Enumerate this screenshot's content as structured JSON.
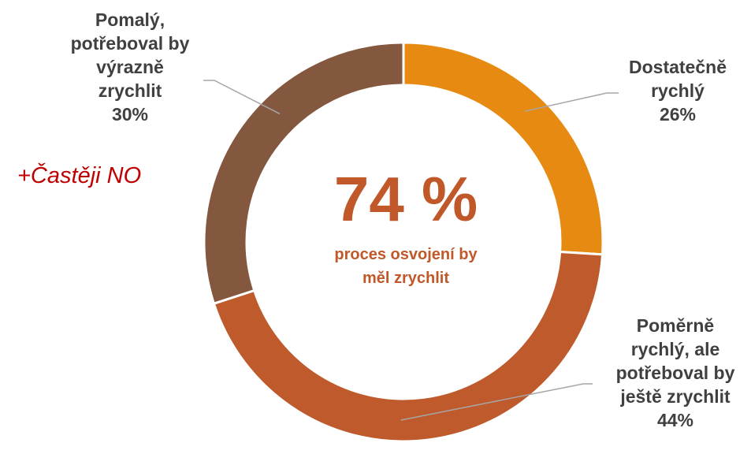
{
  "chart_data": {
    "type": "pie",
    "variant": "donut",
    "categories": [
      "Dostatečně rychlý",
      "Poměrně rychlý, ale potřeboval by ještě zrychlit",
      "Pomalý, potřeboval by výrazně zrychlit"
    ],
    "values": [
      26,
      44,
      30
    ],
    "value_labels": [
      "26%",
      "44%",
      "30%"
    ],
    "colors": [
      "#E68A12",
      "#BE5A2B",
      "#84573F"
    ],
    "label_lines": [
      [
        "Dostatečně",
        "rychlý",
        "26%"
      ],
      [
        "Poměrně",
        "rychlý, ale",
        "potřeboval by",
        "ještě zrychlit",
        "44%"
      ],
      [
        "Pomalý,",
        "potřeboval by",
        "výrazně",
        "zrychlit",
        "30%"
      ]
    ],
    "center": {
      "value": "74 %",
      "caption_lines": [
        "proces osvojení by",
        "měl zrychlit"
      ],
      "color": "#C0582A"
    },
    "annotation": {
      "text": "+Častěji NO",
      "color": "#C00000"
    },
    "legend": "none",
    "grid": false
  }
}
